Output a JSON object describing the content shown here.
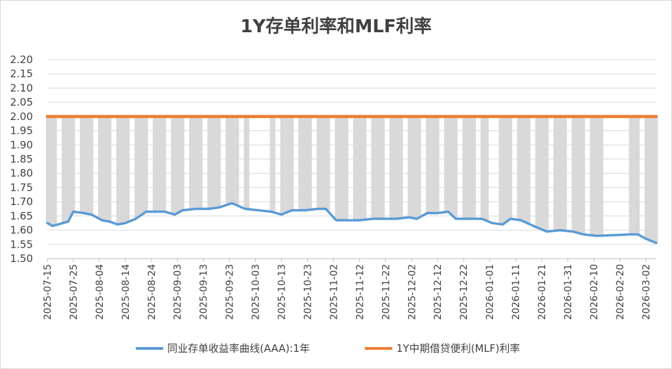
{
  "chart_data": {
    "type": "line",
    "title": "1Y存单利率和MLF利率",
    "xlabel": "",
    "ylabel": "",
    "ylim": [
      1.5,
      2.2
    ],
    "yticks": [
      "1.50",
      "1.55",
      "1.60",
      "1.65",
      "1.70",
      "1.75",
      "1.80",
      "1.85",
      "1.90",
      "1.95",
      "2.00",
      "2.05",
      "2.10",
      "2.15",
      "2.20"
    ],
    "x_range": [
      "2025-07-15",
      "2026-03-06"
    ],
    "xticks": [
      "2025-07-15",
      "2025-07-25",
      "2025-08-04",
      "2025-08-14",
      "2025-08-24",
      "2025-09-03",
      "2025-09-13",
      "2025-09-23",
      "2025-10-03",
      "2025-10-13",
      "2025-10-23",
      "2025-11-02",
      "2025-11-12",
      "2025-11-22",
      "2025-12-02",
      "2025-12-12",
      "2025-12-22",
      "2026-01-01",
      "2026-01-11",
      "2026-01-21",
      "2026-01-31",
      "2026-02-10",
      "2026-02-20",
      "2026-03-02"
    ],
    "grid": true,
    "legend_position": "bottom",
    "fill_between": {
      "upper_series": 1,
      "lower_series": 0,
      "color": "#d9d9d9"
    },
    "series": [
      {
        "name": "同业存单收益率曲线(AAA):1年",
        "color": "#5b9bd5",
        "x": [
          "2025-07-15",
          "2025-07-17",
          "2025-07-21",
          "2025-07-23",
          "2025-07-25",
          "2025-07-29",
          "2025-08-01",
          "2025-08-05",
          "2025-08-08",
          "2025-08-11",
          "2025-08-14",
          "2025-08-18",
          "2025-08-22",
          "2025-08-26",
          "2025-08-29",
          "2025-09-02",
          "2025-09-05",
          "2025-09-10",
          "2025-09-15",
          "2025-09-19",
          "2025-09-24",
          "2025-09-29",
          "2025-10-09",
          "2025-10-13",
          "2025-10-17",
          "2025-10-22",
          "2025-10-27",
          "2025-10-30",
          "2025-11-03",
          "2025-11-07",
          "2025-11-12",
          "2025-11-17",
          "2025-11-21",
          "2025-11-26",
          "2025-12-01",
          "2025-12-04",
          "2025-12-08",
          "2025-12-12",
          "2025-12-16",
          "2025-12-19",
          "2025-12-23",
          "2025-12-29",
          "2026-01-02",
          "2026-01-06",
          "2026-01-09",
          "2026-01-13",
          "2026-01-19",
          "2026-01-23",
          "2026-01-28",
          "2026-02-02",
          "2026-02-06",
          "2026-02-11",
          "2026-02-24",
          "2026-02-27",
          "2026-03-02",
          "2026-03-06"
        ],
        "y": [
          1.625,
          1.615,
          1.625,
          1.63,
          1.665,
          1.66,
          1.655,
          1.635,
          1.63,
          1.62,
          1.625,
          1.64,
          1.665,
          1.665,
          1.665,
          1.655,
          1.67,
          1.675,
          1.675,
          1.68,
          1.695,
          1.675,
          1.665,
          1.655,
          1.67,
          1.67,
          1.675,
          1.675,
          1.635,
          1.635,
          1.635,
          1.64,
          1.64,
          1.64,
          1.645,
          1.64,
          1.66,
          1.66,
          1.665,
          1.64,
          1.64,
          1.64,
          1.625,
          1.62,
          1.64,
          1.635,
          1.61,
          1.595,
          1.6,
          1.595,
          1.585,
          1.58,
          1.585,
          1.585,
          1.57,
          1.555
        ]
      },
      {
        "name": "1Y中期借贷便利(MLF)利率",
        "color": "#ed7d31",
        "x": [
          "2025-07-15",
          "2026-03-06"
        ],
        "y": [
          2.0,
          2.0
        ]
      }
    ]
  }
}
